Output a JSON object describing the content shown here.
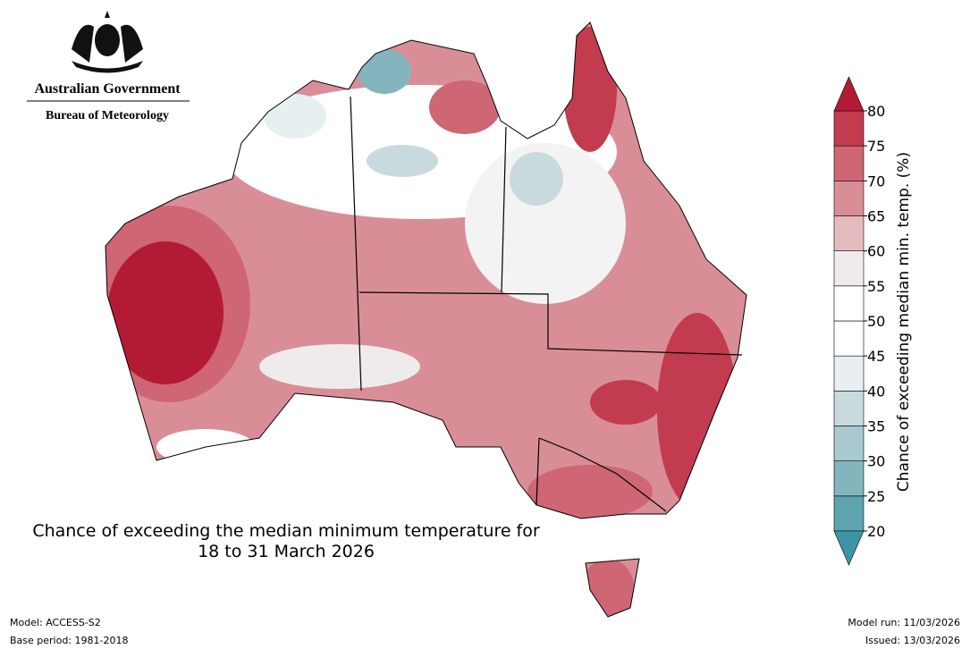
{
  "header": {
    "government": "Australian Government",
    "agency": "Bureau of Meteorology"
  },
  "title": {
    "line1": "Chance of exceeding the median minimum temperature for",
    "line2": "18 to 31 March 2026"
  },
  "colorbar": {
    "label": "Chance of exceeding median min. temp. (%)",
    "ticks": [
      20,
      25,
      30,
      35,
      40,
      45,
      50,
      55,
      60,
      65,
      70,
      75,
      80
    ],
    "colors": [
      "#5ea3b0",
      "#84b5bf",
      "#a8c9cf",
      "#c9dade",
      "#e8eff1",
      "#ffffff",
      "#ffffff",
      "#efebec",
      "#e6bbc0",
      "#d98e97",
      "#cf6674",
      "#c23b4e"
    ],
    "under_color": "#3e94a6",
    "over_color": "#b31b34"
  },
  "footer": {
    "model": "Model: ACCESS-S2",
    "base_period": "Base period: 1981-2018",
    "model_run": "Model run: 11/03/2026",
    "issued": "Issued: 13/03/2026"
  }
}
